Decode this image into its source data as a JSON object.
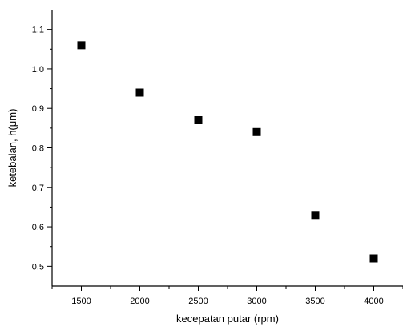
{
  "chart_data": {
    "type": "scatter",
    "title": "",
    "xlabel": "kecepatan putar (rpm)",
    "ylabel": "ketebalan, h(μm)",
    "xlim": [
      1250,
      4250
    ],
    "ylim": [
      0.45,
      1.15
    ],
    "x_ticks": [
      1500,
      2000,
      2500,
      3000,
      3500,
      4000
    ],
    "y_ticks": [
      0.5,
      0.6,
      0.7,
      0.8,
      0.9,
      1.0,
      1.1
    ],
    "x_tick_labels": [
      "1500",
      "2000",
      "2500",
      "3000",
      "3500",
      "4000"
    ],
    "y_tick_labels": [
      "0.5",
      "0.6",
      "0.7",
      "0.8",
      "0.9",
      "1.0",
      "1.1"
    ],
    "grid": false,
    "marker": "square",
    "marker_color": "#000000",
    "series": [
      {
        "x": [
          1500,
          2000,
          2500,
          3000,
          3500,
          4000
        ],
        "y": [
          1.06,
          0.94,
          0.87,
          0.84,
          0.63,
          0.52
        ]
      }
    ]
  }
}
